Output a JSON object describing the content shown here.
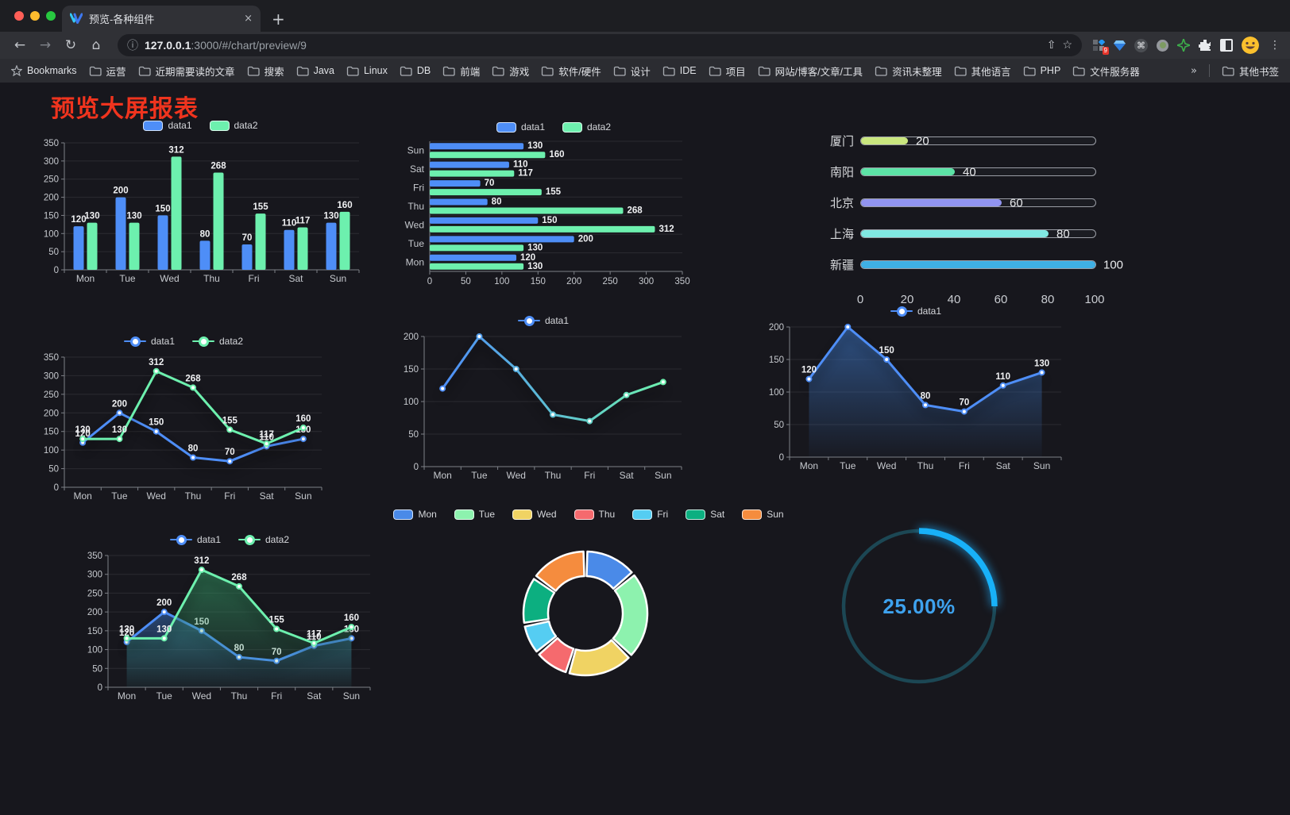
{
  "browser": {
    "tab_title": "预览-各种组件",
    "tab_close": "×",
    "new_tab_label": "+",
    "url_host": "127.0.0.1",
    "url_rest": ":3000/#/chart/preview/9",
    "extension_badge": "9",
    "bookmarks_label": "Bookmarks",
    "bookmark_folders": [
      "运营",
      "近期需要读的文章",
      "搜索",
      "Java",
      "Linux",
      "DB",
      "前端",
      "游戏",
      "软件/硬件",
      "设计",
      "IDE",
      "项目",
      "网站/博客/文章/工具",
      "资讯未整理",
      "其他语言",
      "PHP",
      "文件服务器"
    ],
    "bookmarks_overflow": "»",
    "other_bookmarks": "其他书签"
  },
  "page": {
    "title": "预览大屏报表",
    "title_color": "#f0341e",
    "background": "#17171d"
  },
  "chart_data": [
    {
      "id": "bar-vertical",
      "type": "bar",
      "legend": "rect",
      "categories": [
        "Mon",
        "Tue",
        "Wed",
        "Thu",
        "Fri",
        "Sat",
        "Sun"
      ],
      "series": [
        {
          "name": "data1",
          "color": "#4e8ef7",
          "values": [
            120,
            200,
            150,
            80,
            70,
            110,
            130
          ]
        },
        {
          "name": "data2",
          "color": "#6df0ae",
          "values": [
            130,
            130,
            312,
            268,
            155,
            117,
            160
          ]
        }
      ],
      "ylim": [
        0,
        350
      ],
      "ytick": 50,
      "value_labels": true,
      "grid": true
    },
    {
      "id": "bar-horizontal",
      "type": "hbar",
      "legend": "rect",
      "categories": [
        "Mon",
        "Tue",
        "Wed",
        "Thu",
        "Fri",
        "Sat",
        "Sun"
      ],
      "series": [
        {
          "name": "data1",
          "color": "#4e8ef7",
          "values": [
            120,
            200,
            150,
            80,
            70,
            110,
            130
          ]
        },
        {
          "name": "data2",
          "color": "#6df0ae",
          "values": [
            130,
            130,
            312,
            268,
            155,
            117,
            160
          ]
        }
      ],
      "xlim": [
        0,
        350
      ],
      "xtick": 50,
      "value_labels": true,
      "grid": true
    },
    {
      "id": "progress",
      "type": "progress",
      "max": 100,
      "axis_ticks": [
        0,
        20,
        40,
        60,
        80,
        100
      ],
      "rows": [
        {
          "label": "厦门",
          "value": 20,
          "color": "#c9e67e"
        },
        {
          "label": "南阳",
          "value": 40,
          "color": "#5ce3a6"
        },
        {
          "label": "北京",
          "value": 60,
          "color": "#9194f0"
        },
        {
          "label": "上海",
          "value": 80,
          "color": "#80e8e2"
        },
        {
          "label": "新疆",
          "value": 100,
          "color": "#3fb0e4"
        }
      ]
    },
    {
      "id": "line-two",
      "type": "line",
      "legend": "dot",
      "categories": [
        "Mon",
        "Tue",
        "Wed",
        "Thu",
        "Fri",
        "Sat",
        "Sun"
      ],
      "series": [
        {
          "name": "data1",
          "color": "#4e8ef7",
          "values": [
            120,
            200,
            150,
            80,
            70,
            110,
            130
          ]
        },
        {
          "name": "data2",
          "color": "#6df0ae",
          "values": [
            130,
            130,
            312,
            268,
            155,
            117,
            160
          ]
        }
      ],
      "ylim": [
        0,
        350
      ],
      "ytick": 50,
      "value_labels": true,
      "grid": true
    },
    {
      "id": "line-gradient",
      "type": "line",
      "legend": "dot",
      "categories": [
        "Mon",
        "Tue",
        "Wed",
        "Thu",
        "Fri",
        "Sat",
        "Sun"
      ],
      "series": [
        {
          "name": "data1",
          "color": "#4e8ef7",
          "gradient": [
            "#4e8ef7",
            "#6df0ae"
          ],
          "values": [
            120,
            200,
            150,
            80,
            70,
            110,
            130
          ]
        }
      ],
      "ylim": [
        0,
        200
      ],
      "ytick": 50,
      "value_labels": false,
      "grid": true
    },
    {
      "id": "line-area",
      "type": "line",
      "legend": "dot",
      "categories": [
        "Mon",
        "Tue",
        "Wed",
        "Thu",
        "Fri",
        "Sat",
        "Sun"
      ],
      "series": [
        {
          "name": "data1",
          "color": "#4e8ef7",
          "area": [
            "rgba(62,120,200,0.6)",
            "rgba(62,120,200,0.03)"
          ],
          "values": [
            120,
            200,
            150,
            80,
            70,
            110,
            130
          ]
        }
      ],
      "ylim": [
        0,
        200
      ],
      "ytick": 50,
      "value_labels": true,
      "grid": true
    },
    {
      "id": "line-two-area",
      "type": "line",
      "legend": "dot",
      "categories": [
        "Mon",
        "Tue",
        "Wed",
        "Thu",
        "Fri",
        "Sat",
        "Sun"
      ],
      "series": [
        {
          "name": "data1",
          "color": "#4e8ef7",
          "area": [
            "rgba(62,120,200,0.55)",
            "rgba(62,120,200,0.04)"
          ],
          "values": [
            120,
            200,
            150,
            80,
            70,
            110,
            130
          ]
        },
        {
          "name": "data2",
          "color": "#6df0ae",
          "area": [
            "rgba(52,150,100,0.6)",
            "rgba(52,150,100,0.05)"
          ],
          "values": [
            130,
            130,
            312,
            268,
            155,
            117,
            160
          ]
        }
      ],
      "ylim": [
        0,
        350
      ],
      "ytick": 50,
      "value_labels": true,
      "grid": true
    },
    {
      "id": "donut",
      "type": "pie",
      "legend": "rect",
      "categories": [
        "Mon",
        "Tue",
        "Wed",
        "Thu",
        "Fri",
        "Sat",
        "Sun"
      ],
      "values": [
        120,
        200,
        150,
        80,
        70,
        110,
        130
      ],
      "colors": [
        "#4a8ae8",
        "#8df2ae",
        "#f0d363",
        "#f56a6e",
        "#55cdf2",
        "#0caf80",
        "#f58c3e"
      ]
    },
    {
      "id": "gauge",
      "type": "gauge",
      "value": 25,
      "label": "25.00%",
      "arc_color": "#18b1f8",
      "track_color": "#1c4754",
      "text_color": "#3ea2ee"
    }
  ]
}
